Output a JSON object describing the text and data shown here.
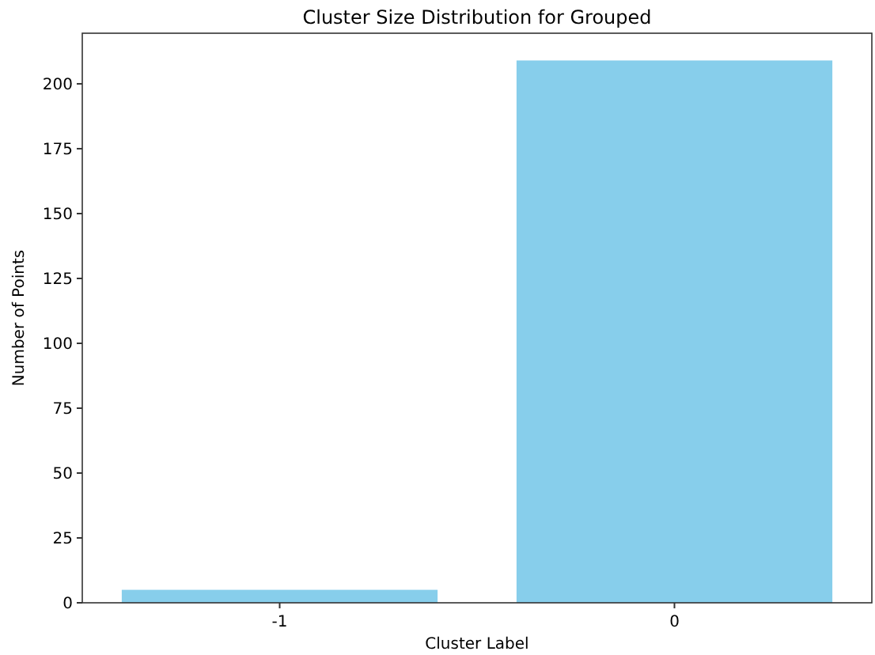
{
  "chart_data": {
    "type": "bar",
    "title": "Cluster Size Distribution for Grouped",
    "xlabel": "Cluster Label",
    "ylabel": "Number of Points",
    "categories": [
      "-1",
      "0"
    ],
    "values": [
      5,
      209
    ],
    "color": "#87ceeb",
    "ylim": [
      0,
      219.5
    ],
    "yticks": [
      0,
      25,
      50,
      75,
      100,
      125,
      150,
      175,
      200
    ],
    "grid": false
  }
}
